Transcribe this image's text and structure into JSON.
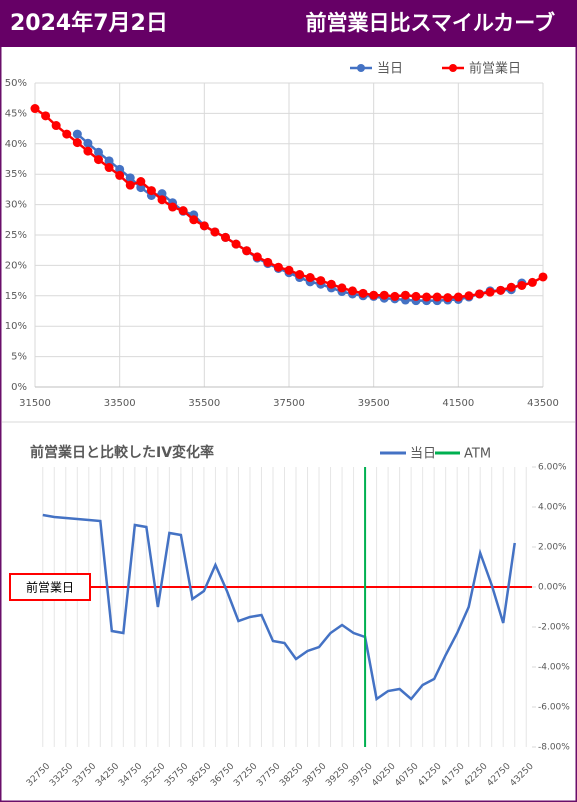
{
  "header": {
    "date": "2024年7月2日",
    "title": "前営業日比スマイルカーブ"
  },
  "chart_data": [
    {
      "type": "scatter-line",
      "series": [
        {
          "name": "当日",
          "color": "#4472c4",
          "x": [
            32500,
            32750,
            33000,
            33250,
            33500,
            33750,
            34000,
            34250,
            34500,
            34750,
            35000,
            35250,
            35500,
            35750,
            36000,
            36250,
            36500,
            36750,
            37000,
            37250,
            37500,
            37750,
            38000,
            38250,
            38500,
            38750,
            39000,
            39250,
            39500,
            39750,
            40000,
            40250,
            40500,
            40750,
            41000,
            41250,
            41500,
            41750,
            42000,
            42250,
            42500,
            42750,
            43000
          ],
          "values": [
            41.6,
            40.1,
            38.6,
            37.2,
            35.8,
            34.4,
            32.8,
            31.5,
            31.8,
            30.3,
            28.9,
            28.3,
            26.5,
            25.5,
            24.6,
            23.5,
            22.4,
            21.2,
            20.3,
            19.5,
            18.8,
            18.0,
            17.3,
            16.9,
            16.3,
            15.7,
            15.3,
            15.0,
            14.9,
            14.6,
            14.5,
            14.3,
            14.2,
            14.2,
            14.2,
            14.3,
            14.4,
            14.8,
            15.3,
            15.8,
            15.9,
            16.0,
            17.1
          ]
        },
        {
          "name": "前営業日",
          "color": "#ff0000",
          "x": [
            31500,
            31750,
            32000,
            32250,
            32500,
            32750,
            33000,
            33250,
            33500,
            33750,
            34000,
            34250,
            34500,
            34750,
            35000,
            35250,
            35500,
            35750,
            36000,
            36250,
            36500,
            36750,
            37000,
            37250,
            37500,
            37750,
            38000,
            38250,
            38500,
            38750,
            39000,
            39250,
            39500,
            39750,
            40000,
            40250,
            40500,
            40750,
            41000,
            41250,
            41500,
            41750,
            42000,
            42250,
            42500,
            42750,
            43000,
            43250,
            43500
          ],
          "values": [
            45.8,
            44.6,
            43.0,
            41.6,
            40.2,
            38.8,
            37.4,
            36.1,
            34.8,
            33.2,
            33.8,
            32.3,
            30.8,
            29.6,
            29.0,
            27.5,
            26.5,
            25.5,
            24.6,
            23.5,
            22.4,
            21.4,
            20.5,
            19.7,
            19.2,
            18.5,
            18.0,
            17.5,
            16.9,
            16.3,
            15.8,
            15.4,
            15.1,
            15.1,
            14.9,
            15.1,
            14.9,
            14.8,
            14.8,
            14.7,
            14.8,
            15.0,
            15.3,
            15.6,
            15.9,
            16.4,
            16.7,
            17.2,
            18.1
          ]
        }
      ],
      "xlim": [
        31500,
        43500
      ],
      "xticks": [
        31500,
        33500,
        35500,
        37500,
        39500,
        41500,
        43500
      ],
      "ylim": [
        0,
        50
      ],
      "yticks": [
        {
          "value": 0,
          "label": "0%"
        },
        {
          "value": 5,
          "label": "5%"
        },
        {
          "value": 10,
          "label": "10%"
        },
        {
          "value": 15,
          "label": "15%"
        },
        {
          "value": 20,
          "label": "20%"
        },
        {
          "value": 25,
          "label": "25%"
        },
        {
          "value": 30,
          "label": "30%"
        },
        {
          "value": 35,
          "label": "35%"
        },
        {
          "value": 40,
          "label": "40%"
        },
        {
          "value": 45,
          "label": "45%"
        },
        {
          "value": 50,
          "label": "50%"
        }
      ],
      "grid": true,
      "legend": "top"
    },
    {
      "type": "line",
      "title": "前営業日と比較したIV変化率",
      "categories": [
        "32750",
        null,
        "33250",
        null,
        "33750",
        null,
        "34250",
        null,
        "34750",
        null,
        "35250",
        null,
        "35750",
        null,
        "36250",
        null,
        "36750",
        null,
        "37250",
        null,
        "37750",
        null,
        "38250",
        null,
        "38750",
        null,
        "39250",
        null,
        "39750",
        null,
        "40250",
        null,
        "40750",
        null,
        "41250",
        null,
        "41750",
        null,
        "42250",
        null,
        "42750",
        null,
        "43250"
      ],
      "series": [
        {
          "name": "当日",
          "color": "#4472c4",
          "values": [
            3.6,
            3.5,
            3.45,
            3.4,
            3.35,
            3.3,
            -2.2,
            -2.3,
            3.1,
            3.0,
            -1.0,
            2.7,
            2.6,
            -0.6,
            -0.2,
            1.1,
            -0.2,
            -1.7,
            -1.5,
            -1.4,
            -2.7,
            -2.8,
            -3.6,
            -3.2,
            -3.0,
            -2.3,
            -1.9,
            -2.3,
            -2.5,
            -5.6,
            -5.2,
            -5.1,
            -5.6,
            -4.9,
            -4.6,
            -3.4,
            -2.3,
            -1.0,
            1.7,
            0.1,
            -1.8,
            2.2,
            null
          ]
        }
      ],
      "vlines": [
        {
          "name": "ATM",
          "color": "#00b050",
          "at": "39750"
        }
      ],
      "hlines": [
        {
          "name": "前営業日",
          "color": "#ff0000",
          "value": 0
        }
      ],
      "ylim": [
        -8,
        6
      ],
      "yticks": [
        {
          "value": -8,
          "label": "-8.00%"
        },
        {
          "value": -6,
          "label": "-6.00%"
        },
        {
          "value": -4,
          "label": "-4.00%"
        },
        {
          "value": -2,
          "label": "-2.00%"
        },
        {
          "value": 0,
          "label": "0.00%"
        },
        {
          "value": 2,
          "label": "2.00%"
        },
        {
          "value": 4,
          "label": "4.00%"
        },
        {
          "value": 6,
          "label": "6.00%"
        }
      ],
      "legend": "top-right"
    }
  ]
}
